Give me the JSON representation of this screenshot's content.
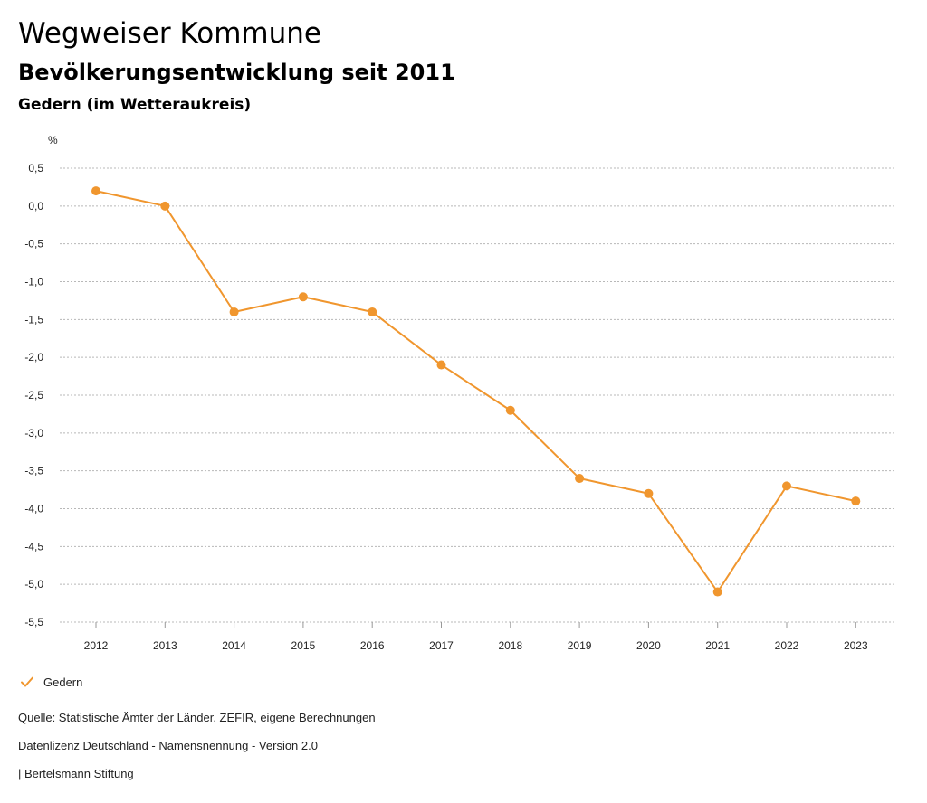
{
  "header": {
    "title": "Wegweiser Kommune",
    "subtitle": "Bevölkerungsentwicklung seit 2011",
    "region": "Gedern (im Wetteraukreis)"
  },
  "chart_data": {
    "type": "line",
    "unit_label": "%",
    "x": [
      "2012",
      "2013",
      "2014",
      "2015",
      "2016",
      "2017",
      "2018",
      "2019",
      "2020",
      "2021",
      "2022",
      "2023"
    ],
    "series": [
      {
        "name": "Gedern",
        "color": "#f0962e",
        "values": [
          0.2,
          0.0,
          -1.4,
          -1.2,
          -1.4,
          -2.1,
          -2.7,
          -3.6,
          -3.8,
          -5.1,
          -3.7,
          -3.9
        ]
      }
    ],
    "yticks": [
      "0,5",
      "0,0",
      "-0,5",
      "-1,0",
      "-1,5",
      "-2,0",
      "-2,5",
      "-3,0",
      "-3,5",
      "-4,0",
      "-4,5",
      "-5,0",
      "-5,5"
    ],
    "ytick_values": [
      0.5,
      0.0,
      -0.5,
      -1.0,
      -1.5,
      -2.0,
      -2.5,
      -3.0,
      -3.5,
      -4.0,
      -4.5,
      -5.0,
      -5.5
    ],
    "ylim": [
      -5.5,
      0.5
    ],
    "grid": true,
    "legend_position": "bottom-left"
  },
  "legend": {
    "label": "Gedern",
    "icon": "check-icon"
  },
  "footer": {
    "source": "Quelle: Statistische Ämter der Länder, ZEFIR, eigene Berechnungen",
    "license": "Datenlizenz Deutschland - Namensnennung - Version 2.0",
    "publisher": "| Bertelsmann Stiftung"
  }
}
